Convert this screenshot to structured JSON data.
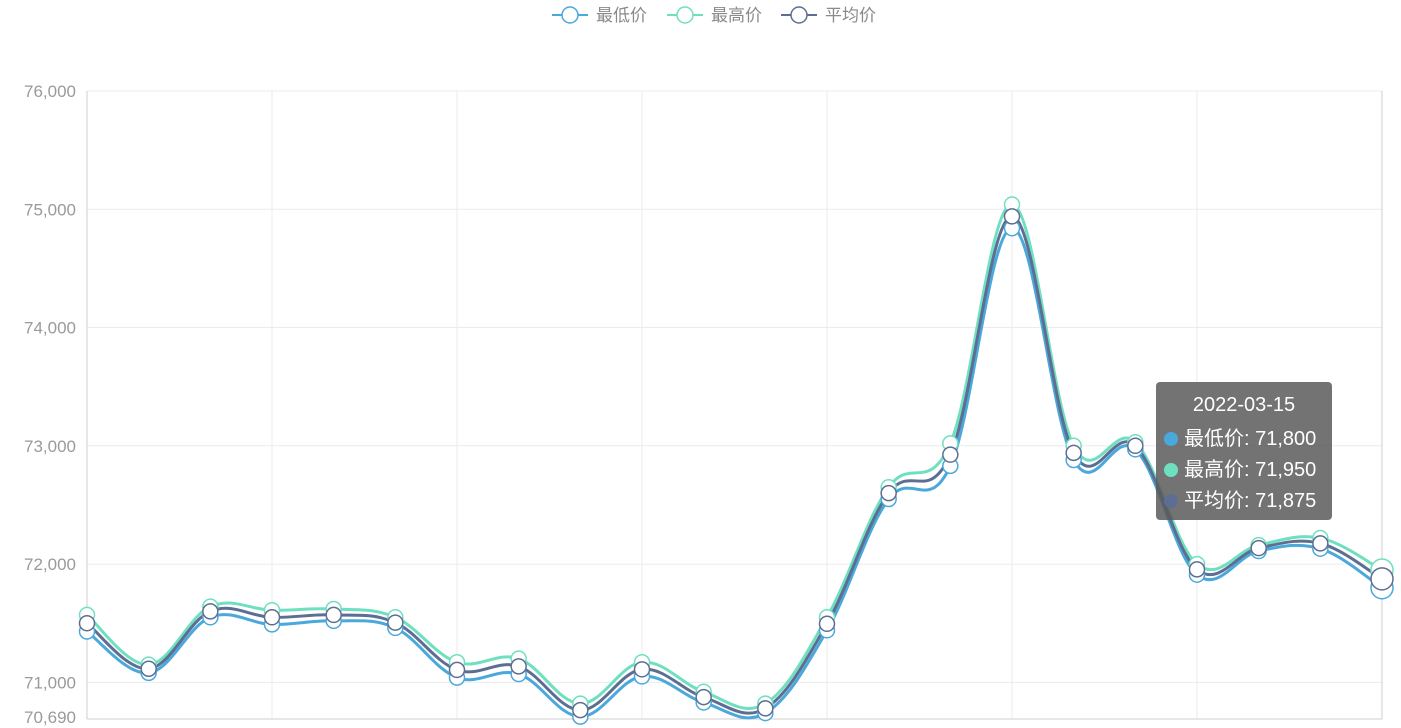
{
  "chart_data": {
    "type": "line",
    "smooth": true,
    "ylim": [
      70690,
      76000
    ],
    "yticks": [
      "70,690",
      "71,000",
      "72,000",
      "73,000",
      "74,000",
      "75,000",
      "76,000"
    ],
    "ytick_values": [
      70690,
      71000,
      72000,
      73000,
      74000,
      75000,
      76000
    ],
    "legend_position": "top-center",
    "grid": true,
    "series": [
      {
        "name": "最低价",
        "color": "#4aa8db",
        "values": [
          71430,
          71080,
          71550,
          71490,
          71520,
          71460,
          71040,
          71070,
          70710,
          71050,
          70830,
          70740,
          71440,
          72550,
          72830,
          74840,
          72880,
          72970,
          71910,
          72110,
          72130,
          71800
        ]
      },
      {
        "name": "最高价",
        "color": "#6ee0c0",
        "values": [
          71570,
          71150,
          71640,
          71610,
          71620,
          71550,
          71170,
          71200,
          70820,
          71170,
          70920,
          70820,
          71550,
          72650,
          73020,
          75040,
          73000,
          73030,
          72000,
          72160,
          72220,
          71950
        ]
      },
      {
        "name": "平均价",
        "color": "#5e6e92",
        "values": [
          71500,
          71115,
          71600,
          71550,
          71570,
          71505,
          71105,
          71135,
          70765,
          71110,
          70875,
          70780,
          71495,
          72600,
          72925,
          74940,
          72940,
          73000,
          71955,
          72135,
          72175,
          71875
        ]
      }
    ],
    "tooltip": {
      "date": "2022-03-15",
      "rows": [
        {
          "label": "最低价: 71,800",
          "color": "#4aa8db"
        },
        {
          "label": "最高价: 71,950",
          "color": "#6ee0c0"
        },
        {
          "label": "平均价: 71,875",
          "color": "#5e6e92"
        }
      ]
    }
  }
}
